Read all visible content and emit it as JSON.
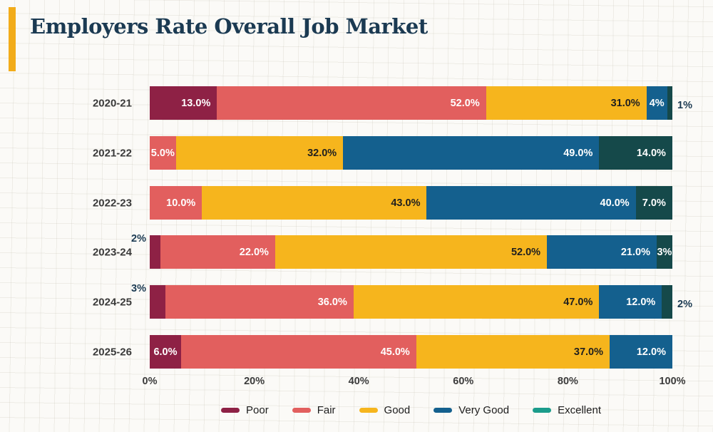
{
  "accent_color": "#f2ac1a",
  "title_color": "#1b3a52",
  "outside_label_color": "#1b3a52",
  "chart_data": {
    "type": "bar",
    "stacked": true,
    "horizontal": true,
    "title": "Employers Rate Overall Job Market",
    "x_axis": {
      "ticks": [
        "0%",
        "20%",
        "40%",
        "60%",
        "80%",
        "100%"
      ],
      "range": [
        0,
        100
      ],
      "grid": false
    },
    "legend_position": "bottom",
    "categories": [
      "2020-21",
      "2021-22",
      "2022-23",
      "2023-24",
      "2024-25",
      "2025-26"
    ],
    "series": [
      {
        "name": "Poor",
        "color": "#8e2145",
        "label_color": "#ffffff",
        "legend_color": "#8e2145"
      },
      {
        "name": "Fair",
        "color": "#e25f5e",
        "label_color": "#ffffff",
        "legend_color": "#e25f5e"
      },
      {
        "name": "Good",
        "color": "#f6b51d",
        "label_color": "#1f1f1f",
        "legend_color": "#f6b51d"
      },
      {
        "name": "Very Good",
        "color": "#14608e",
        "label_color": "#ffffff",
        "legend_color": "#14608e"
      },
      {
        "name": "Excellent",
        "color": "#15494a",
        "label_color": "#ffffff",
        "legend_color": "#1b9c8b"
      }
    ],
    "rows": [
      {
        "category": "2020-21",
        "segments": [
          {
            "series": "Poor",
            "value": 13,
            "label": "13.0%",
            "label_position": "inside"
          },
          {
            "series": "Fair",
            "value": 52,
            "label": "52.0%",
            "label_position": "inside"
          },
          {
            "series": "Good",
            "value": 31,
            "label": "31.0%",
            "label_position": "inside"
          },
          {
            "series": "Very Good",
            "value": 4,
            "label": "4%",
            "label_position": "inside"
          },
          {
            "series": "Excellent",
            "value": 1,
            "label": "1%",
            "label_position": "outside-right"
          }
        ]
      },
      {
        "category": "2021-22",
        "segments": [
          {
            "series": "Fair",
            "value": 5,
            "label": "5.0%",
            "label_position": "inside"
          },
          {
            "series": "Good",
            "value": 32,
            "label": "32.0%",
            "label_position": "inside"
          },
          {
            "series": "Very Good",
            "value": 49,
            "label": "49.0%",
            "label_position": "inside"
          },
          {
            "series": "Excellent",
            "value": 14,
            "label": "14.0%",
            "label_position": "inside"
          }
        ]
      },
      {
        "category": "2022-23",
        "segments": [
          {
            "series": "Fair",
            "value": 10,
            "label": "10.0%",
            "label_position": "inside"
          },
          {
            "series": "Good",
            "value": 43,
            "label": "43.0%",
            "label_position": "inside"
          },
          {
            "series": "Very Good",
            "value": 40,
            "label": "40.0%",
            "label_position": "inside"
          },
          {
            "series": "Excellent",
            "value": 7,
            "label": "7.0%",
            "label_position": "inside"
          }
        ]
      },
      {
        "category": "2023-24",
        "segments": [
          {
            "series": "Poor",
            "value": 2,
            "label": "2%",
            "label_position": "outside-top-left"
          },
          {
            "series": "Fair",
            "value": 22,
            "label": "22.0%",
            "label_position": "inside"
          },
          {
            "series": "Good",
            "value": 52,
            "label": "52.0%",
            "label_position": "inside"
          },
          {
            "series": "Very Good",
            "value": 21,
            "label": "21.0%",
            "label_position": "inside"
          },
          {
            "series": "Excellent",
            "value": 3,
            "label": "3%",
            "label_position": "inside"
          }
        ]
      },
      {
        "category": "2024-25",
        "segments": [
          {
            "series": "Poor",
            "value": 3,
            "label": "3%",
            "label_position": "outside-top-left"
          },
          {
            "series": "Fair",
            "value": 36,
            "label": "36.0%",
            "label_position": "inside"
          },
          {
            "series": "Good",
            "value": 47,
            "label": "47.0%",
            "label_position": "inside"
          },
          {
            "series": "Very Good",
            "value": 12,
            "label": "12.0%",
            "label_position": "inside"
          },
          {
            "series": "Excellent",
            "value": 2,
            "label": "2%",
            "label_position": "outside-right"
          }
        ]
      },
      {
        "category": "2025-26",
        "segments": [
          {
            "series": "Poor",
            "value": 6,
            "label": "6.0%",
            "label_position": "inside"
          },
          {
            "series": "Fair",
            "value": 45,
            "label": "45.0%",
            "label_position": "inside"
          },
          {
            "series": "Good",
            "value": 37,
            "label": "37.0%",
            "label_position": "inside"
          },
          {
            "series": "Very Good",
            "value": 12,
            "label": "12.0%",
            "label_position": "inside"
          }
        ]
      }
    ]
  }
}
